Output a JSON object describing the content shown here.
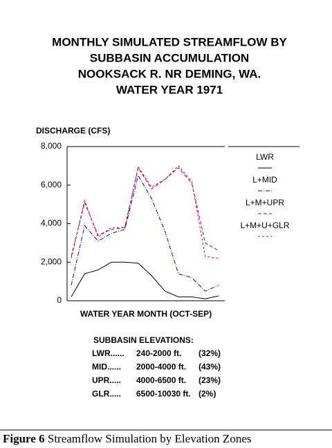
{
  "chart_data": {
    "type": "line",
    "title": [
      "MONTHLY SIMULATED STREAMFLOW BY",
      "SUBBASIN ACCUMULATION",
      "NOOKSACK R.  NR DEMING, WA.",
      "WATER YEAR 1971"
    ],
    "y_label": "DISCHARGE (CFS)",
    "x_label": "WATER YEAR MONTH (OCT-SEP)",
    "categories": [
      null,
      null,
      null,
      null,
      null,
      null,
      null,
      null,
      null,
      null,
      null,
      null
    ],
    "ylim": [
      0,
      8000
    ],
    "yticks": [
      0,
      {
        "value": 2000,
        "label": "2,000"
      },
      {
        "value": 4000,
        "label": "4,000"
      },
      {
        "value": 6000,
        "label": "6,000"
      },
      {
        "value": 8000,
        "label": "8,000"
      }
    ],
    "series": [
      {
        "name": "LWR",
        "color": "#000000",
        "dash": "",
        "values": [
          200,
          1400,
          1600,
          2000,
          2000,
          1950,
          1300,
          500,
          200,
          200,
          100,
          250
        ]
      },
      {
        "name": "L+MID",
        "color": "#0000cc",
        "dash": "6 2 1 2",
        "values": [
          800,
          3900,
          3100,
          3500,
          3700,
          6500,
          5300,
          3600,
          1400,
          1200,
          500,
          800
        ]
      },
      {
        "name": "L+M+UPR",
        "color": "#8000a0",
        "dash": "5 3",
        "values": [
          2300,
          5100,
          3400,
          3700,
          3800,
          6900,
          5800,
          6300,
          6900,
          6100,
          3000,
          2600
        ]
      },
      {
        "name": "L+M+U+GLR",
        "color": "#e00000",
        "dash": "3 3",
        "values": [
          2200,
          5200,
          3300,
          3800,
          3800,
          6950,
          5900,
          6300,
          7000,
          6200,
          2300,
          2200
        ]
      }
    ],
    "annotations": {
      "heading": "SUBBASIN ELEVATIONS:",
      "rows": [
        [
          "LWR......",
          "240-2000 ft.",
          "(32%)"
        ],
        [
          "MID......",
          "2000-4000 ft.",
          "(43%)"
        ],
        [
          "UPR.....",
          "4000-6500 ft.",
          "(23%)"
        ],
        [
          "GLR.....",
          "6500-10030 ft.",
          "(2%)"
        ]
      ]
    }
  },
  "caption": {
    "label": "Figure 6",
    "text": "Streamflow Simulation by Elevation Zones"
  }
}
